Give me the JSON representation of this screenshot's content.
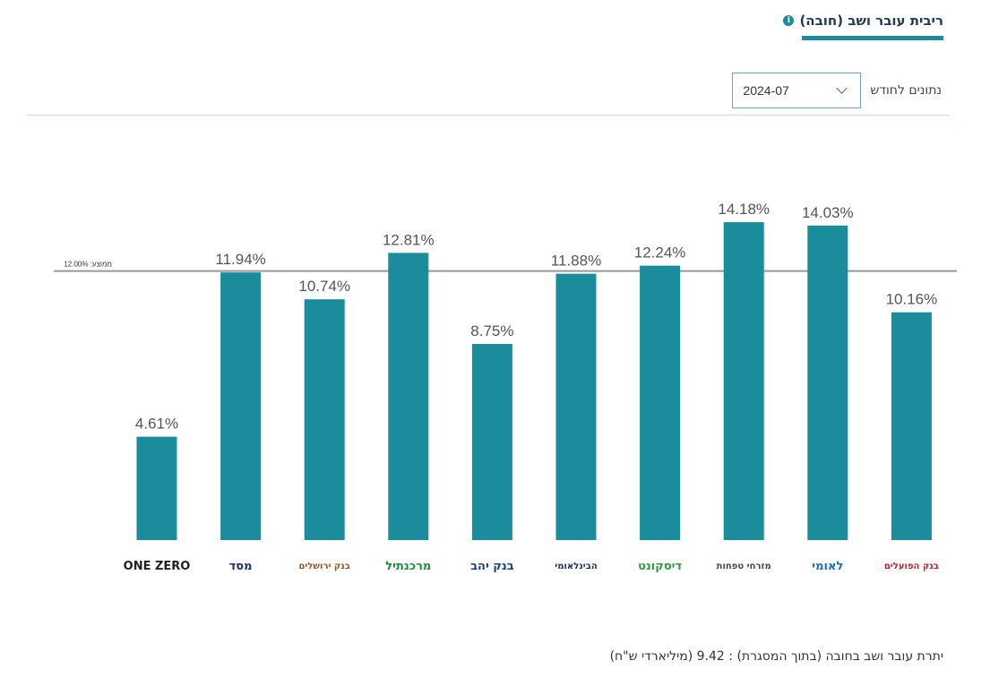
{
  "header": {
    "title": "ריבית עובר ושב (חובה)",
    "info_icon": "info-icon"
  },
  "controls": {
    "month_label": "נתונים לחודש",
    "selected_month": "2024-07"
  },
  "colors": {
    "bar": "#1a8c9c",
    "accent": "#1a8c9c",
    "average_line": "#999999"
  },
  "chart_data": {
    "type": "bar",
    "categories": [
      "ONE ZERO",
      "מסד",
      "בנק ירושלים",
      "מרכנתיל",
      "בנק יהב",
      "הבינלאומי",
      "דיסקונט",
      "מזרחי טפחות",
      "לאומי",
      "בנק הפועלים"
    ],
    "values": [
      4.61,
      11.94,
      10.74,
      12.81,
      8.75,
      11.88,
      12.24,
      14.18,
      14.03,
      10.16
    ],
    "value_labels": [
      "4.61%",
      "11.94%",
      "10.74%",
      "12.81%",
      "8.75%",
      "11.88%",
      "12.24%",
      "14.18%",
      "14.03%",
      "10.16%"
    ],
    "average": {
      "value": 12.0,
      "label": "ממוצע: 12.00%"
    },
    "ylim": [
      0,
      16.5
    ],
    "grid": false,
    "title": "",
    "xlabel": "",
    "ylabel": ""
  },
  "logos": [
    {
      "name": "ONE ZERO",
      "sub": "",
      "color": "#222222"
    },
    {
      "name": "מסד",
      "sub": "",
      "color": "#1c2f6b"
    },
    {
      "name": "בנק ירושלים",
      "sub": "",
      "color": "#8a5a2b"
    },
    {
      "name": "מרכנתיל",
      "sub": "",
      "color": "#1e8a3c"
    },
    {
      "name": "בנק יהב",
      "sub": "",
      "color": "#1c3f7a"
    },
    {
      "name": "הבינלאומי",
      "sub": "",
      "color": "#1c2f6b"
    },
    {
      "name": "דיסקונט",
      "sub": "",
      "color": "#2f9a3e"
    },
    {
      "name": "מזרחי טפחות",
      "sub": "",
      "color": "#444444"
    },
    {
      "name": "לאומי",
      "sub": "",
      "color": "#1f6fb8"
    },
    {
      "name": "בנק הפועלים",
      "sub": "",
      "color": "#c0202b"
    }
  ],
  "footer": {
    "text": "יתרת עובר ושב בחובה (בתוך המסגרת) : 9.42  (מיליארדי ש\"ח)"
  }
}
